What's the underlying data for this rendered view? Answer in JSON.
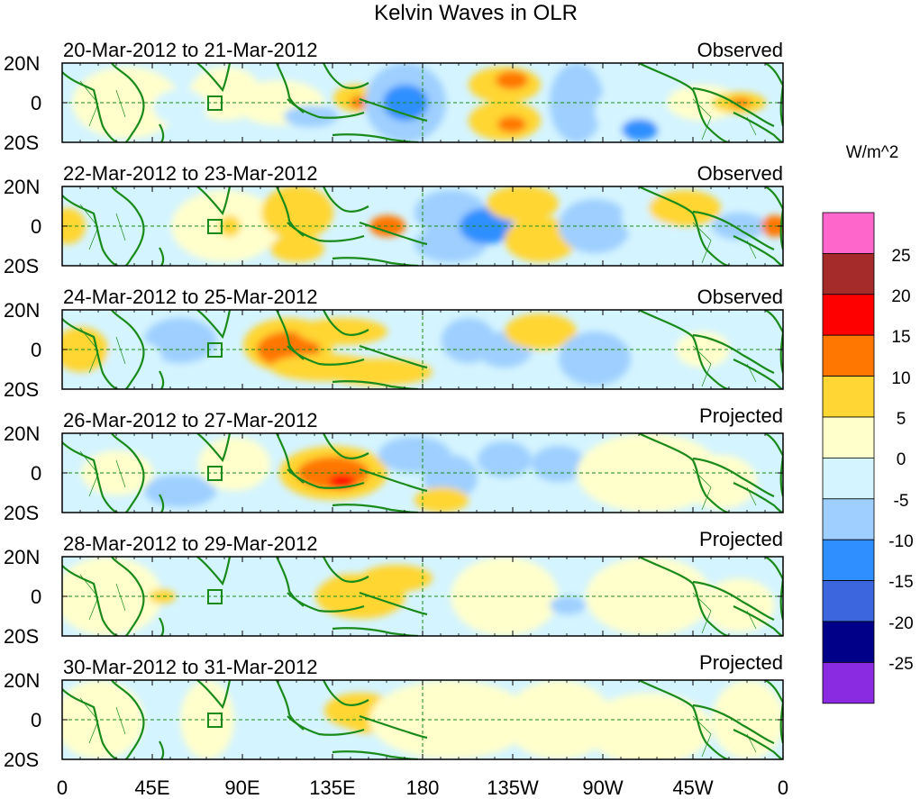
{
  "title": "Kelvin Waves in OLR",
  "units": "W/m^2",
  "y_ticks": [
    "20N",
    "0",
    "20S"
  ],
  "x_ticks": [
    "0",
    "45E",
    "90E",
    "135E",
    "180",
    "135W",
    "90W",
    "45W",
    "0"
  ],
  "panels": [
    {
      "dates": "20-Mar-2012 to 21-Mar-2012",
      "kind": "Observed"
    },
    {
      "dates": "22-Mar-2012 to 23-Mar-2012",
      "kind": "Observed"
    },
    {
      "dates": "24-Mar-2012 to 25-Mar-2012",
      "kind": "Observed"
    },
    {
      "dates": "26-Mar-2012 to 27-Mar-2012",
      "kind": "Projected"
    },
    {
      "dates": "28-Mar-2012 to 29-Mar-2012",
      "kind": "Projected"
    },
    {
      "dates": "30-Mar-2012 to 31-Mar-2012",
      "kind": "Projected"
    }
  ],
  "colorbar": {
    "labels": [
      "25",
      "20",
      "15",
      "10",
      "5",
      "0",
      "-5",
      "-10",
      "-15",
      "-20",
      "-25"
    ],
    "colors": [
      "#ff66cc",
      "#a52a2a",
      "#ff0000",
      "#ff7700",
      "#ffd633",
      "#ffffcc",
      "#d4f4ff",
      "#9ecfff",
      "#2f8fff",
      "#3b66dd",
      "#000088",
      "#8a2be2"
    ]
  },
  "land_color": "#1a8a1a",
  "zero_line_color": "#1a8a1a"
}
